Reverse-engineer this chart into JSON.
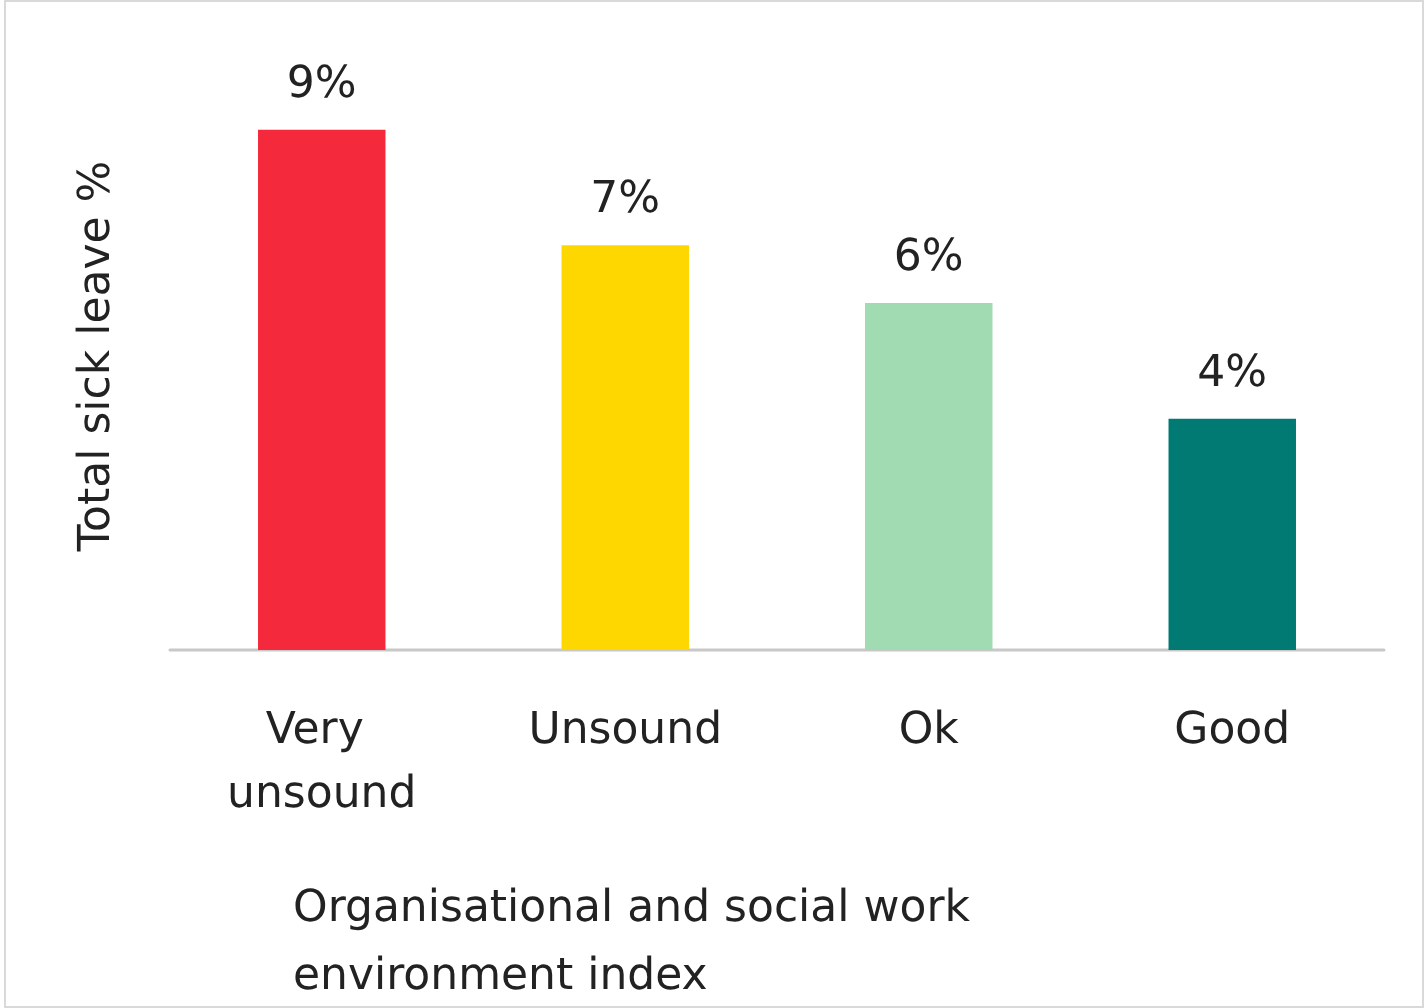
{
  "chart_data": {
    "type": "bar",
    "xlabel": "Organisational and social work environment index",
    "ylabel": "Total sick leave %",
    "categories": [
      "Very unsound",
      "Unsound",
      "Ok",
      "Good"
    ],
    "values": [
      9,
      7,
      6,
      4
    ],
    "colors": [
      "#f42a3c",
      "#ffd700",
      "#a1dbb2",
      "#007a73"
    ],
    "value_labels": [
      "9%",
      "7%",
      "6%",
      "4%"
    ],
    "grid": false
  }
}
